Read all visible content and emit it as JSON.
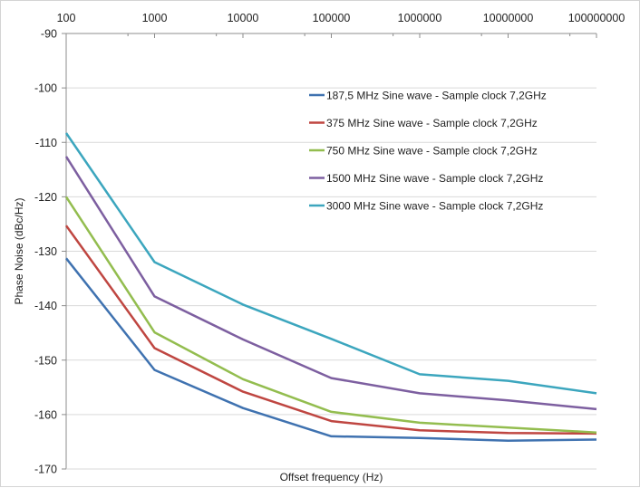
{
  "chart_data": {
    "type": "line",
    "title": "",
    "xlabel": "Offset frequency (Hz)",
    "ylabel": "Phase Noise (dBc/Hz)",
    "xscale": "log",
    "x": [
      100,
      1000,
      10000,
      100000,
      1000000,
      10000000,
      100000000
    ],
    "x_tick_labels": [
      "100",
      "1000",
      "10000",
      "100000",
      "1000000",
      "10000000",
      "100000000"
    ],
    "x_axis_position": "top",
    "ylim": [
      -170,
      -90
    ],
    "y_ticks": [
      -90,
      -100,
      -110,
      -120,
      -130,
      -140,
      -150,
      -160,
      -170
    ],
    "y_tick_labels": [
      "-90",
      "-100",
      "-110",
      "-120",
      "-130",
      "-140",
      "-150",
      "-160",
      "-170"
    ],
    "grid": "horizontal",
    "legend_position": "upper-right",
    "series": [
      {
        "name": "187,5 MHz Sine wave - Sample clock 7,2GHz",
        "color": "#3f72b0",
        "values": [
          -131.3,
          -151.8,
          -158.8,
          -164.0,
          -164.3,
          -164.8,
          -164.6
        ]
      },
      {
        "name": "375 MHz Sine wave - Sample clock 7,2GHz",
        "color": "#bf4641",
        "values": [
          -125.3,
          -147.8,
          -155.8,
          -161.2,
          -162.9,
          -163.4,
          -163.5
        ]
      },
      {
        "name": "750 MHz Sine wave - Sample clock 7,2GHz",
        "color": "#93bd4f",
        "values": [
          -120.0,
          -144.9,
          -153.5,
          -159.5,
          -161.5,
          -162.4,
          -163.3
        ]
      },
      {
        "name": "1500 MHz Sine wave - Sample clock 7,2GHz",
        "color": "#7d5fa0",
        "values": [
          -112.6,
          -138.3,
          -146.2,
          -153.3,
          -156.1,
          -157.4,
          -159.0
        ]
      },
      {
        "name": "3000 MHz Sine wave - Sample clock 7,2GHz",
        "color": "#3ca6be",
        "values": [
          -108.3,
          -132.0,
          -139.8,
          -146.1,
          -152.6,
          -153.8,
          -156.1
        ]
      }
    ]
  }
}
